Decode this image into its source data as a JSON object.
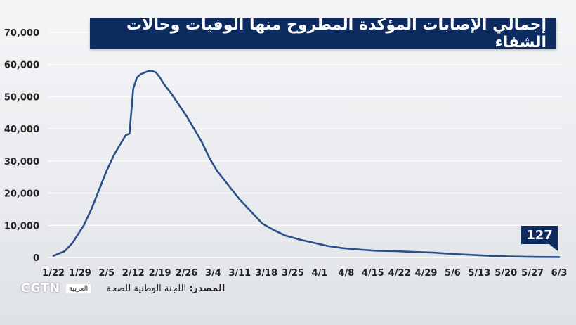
{
  "chart_data": {
    "type": "line",
    "title": "إجمالي الإصابات المؤكدة المطروح منها الوفيات وحالات الشفاء",
    "ylim": [
      0,
      70000
    ],
    "y_ticks": [
      "70,000",
      "60,000",
      "50,000",
      "40,000",
      "30,000",
      "20,000",
      "10,000",
      "0"
    ],
    "x_ticks": [
      "1/22",
      "1/29",
      "2/5",
      "2/12",
      "2/19",
      "2/26",
      "3/4",
      "3/11",
      "3/18",
      "3/25",
      "4/1",
      "4/8",
      "4/15",
      "4/22",
      "4/29",
      "5/6",
      "5/13",
      "5/20",
      "5/27",
      "6/3"
    ],
    "grid": true,
    "line_color": "#2a4f8a",
    "series": [
      {
        "values": [
          [
            0,
            500
          ],
          [
            3,
            2000
          ],
          [
            5,
            4500
          ],
          [
            8,
            10000
          ],
          [
            10,
            15000
          ],
          [
            12,
            21000
          ],
          [
            14,
            27000
          ],
          [
            16,
            32000
          ],
          [
            18,
            36000
          ],
          [
            19,
            38000
          ],
          [
            20,
            38500
          ],
          [
            21,
            52500
          ],
          [
            22,
            56000
          ],
          [
            23,
            57000
          ],
          [
            24,
            57500
          ],
          [
            25,
            58000
          ],
          [
            26,
            58000
          ],
          [
            27,
            57500
          ],
          [
            28,
            56000
          ],
          [
            29,
            54000
          ],
          [
            31,
            51000
          ],
          [
            33,
            47500
          ],
          [
            35,
            44000
          ],
          [
            37,
            40000
          ],
          [
            39,
            36000
          ],
          [
            41,
            31000
          ],
          [
            43,
            27000
          ],
          [
            45,
            24000
          ],
          [
            47,
            21000
          ],
          [
            49,
            18000
          ],
          [
            51,
            15500
          ],
          [
            53,
            13000
          ],
          [
            55,
            10500
          ],
          [
            58,
            8500
          ],
          [
            61,
            6800
          ],
          [
            65,
            5500
          ],
          [
            68,
            4700
          ],
          [
            72,
            3600
          ],
          [
            76,
            2900
          ],
          [
            80,
            2500
          ],
          [
            85,
            2100
          ],
          [
            90,
            2000
          ],
          [
            95,
            1700
          ],
          [
            100,
            1500
          ],
          [
            105,
            1100
          ],
          [
            110,
            800
          ],
          [
            115,
            500
          ],
          [
            120,
            300
          ],
          [
            125,
            200
          ],
          [
            130,
            150
          ],
          [
            133,
            127
          ]
        ]
      }
    ],
    "callout": {
      "label": "127"
    }
  },
  "footer": {
    "logo": "CGTN",
    "logo_sub": "العربية",
    "source_label": "المصدر:",
    "source_text": "اللجنة الوطنية للصحة"
  }
}
